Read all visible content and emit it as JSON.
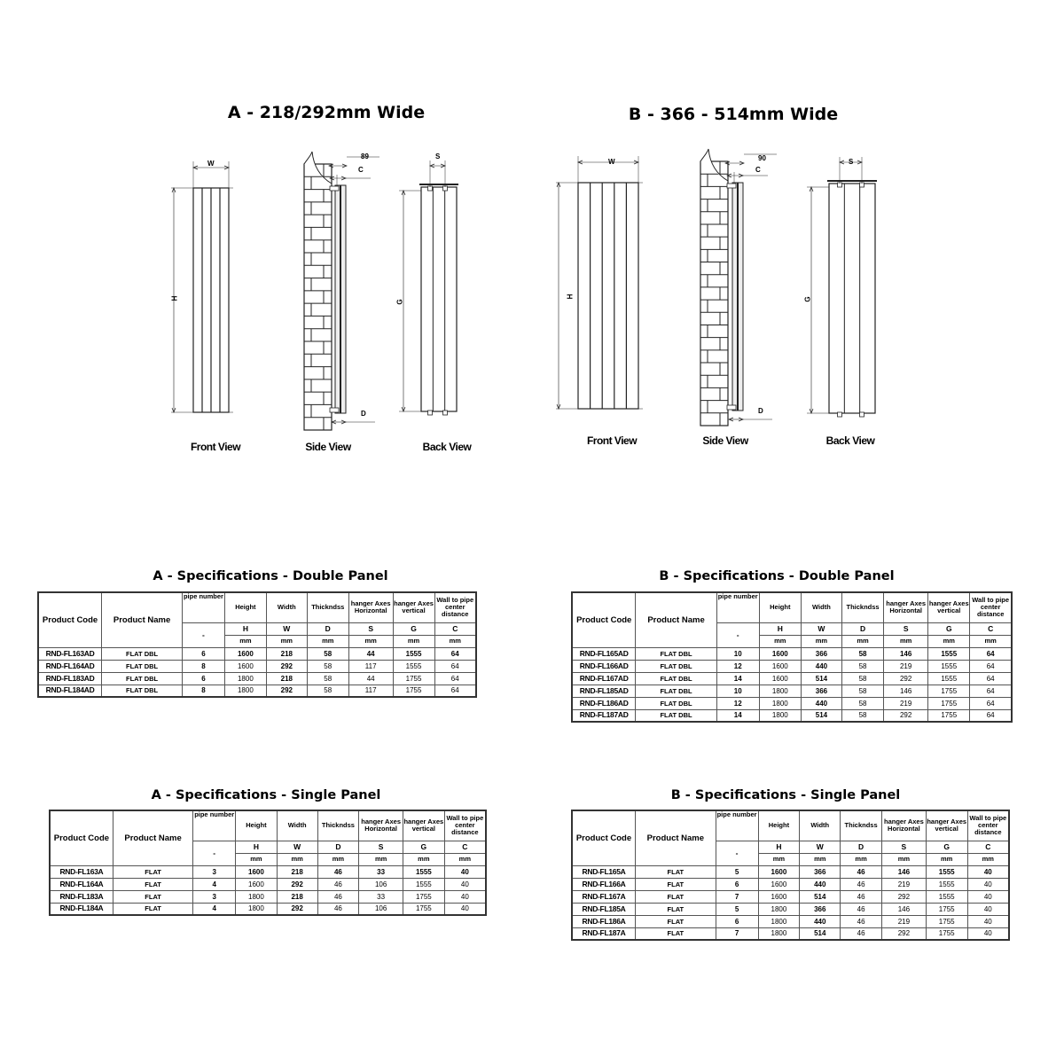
{
  "sections": {
    "A": {
      "title": "A - 218/292mm Wide",
      "views": {
        "front": "Front View",
        "side": "Side View",
        "back": "Back View"
      },
      "dims": {
        "W": "W",
        "H": "H",
        "wall_distance": "89",
        "C": "C",
        "D": "D",
        "S": "S",
        "G": "G"
      }
    },
    "B": {
      "title": "B - 366 - 514mm Wide",
      "views": {
        "front": "Front View",
        "side": "Side View",
        "back": "Back View"
      },
      "dims": {
        "W": "W",
        "H": "H",
        "wall_distance": "90",
        "C": "C",
        "D": "D",
        "S": "S",
        "G": "G"
      }
    }
  },
  "table_header": {
    "columns": [
      "Product Code",
      "Product Name",
      "pipe number",
      "Height",
      "Width",
      "Thickndss",
      "hanger Axes Horizontal",
      "hanger Axes vertical",
      "Wall to pipe center distance"
    ],
    "symbols": [
      "-",
      "H",
      "W",
      "D",
      "S",
      "G",
      "C"
    ],
    "units": [
      "mm",
      "mm",
      "mm",
      "mm",
      "mm",
      "mm"
    ]
  },
  "tables": {
    "a_double": {
      "title": "A - Specifications - Double Panel",
      "rows": [
        [
          "RND-FL163AD",
          "FLAT DBL",
          "6",
          "1600",
          "218",
          "58",
          "44",
          "1555",
          "64"
        ],
        [
          "RND-FL164AD",
          "FLAT DBL",
          "8",
          "1600",
          "292",
          "58",
          "117",
          "1555",
          "64"
        ],
        [
          "RND-FL183AD",
          "FLAT DBL",
          "6",
          "1800",
          "218",
          "58",
          "44",
          "1755",
          "64"
        ],
        [
          "RND-FL184AD",
          "FLAT DBL",
          "8",
          "1800",
          "292",
          "58",
          "117",
          "1755",
          "64"
        ]
      ]
    },
    "b_double": {
      "title": "B - Specifications - Double Panel",
      "rows": [
        [
          "RND-FL165AD",
          "FLAT DBL",
          "10",
          "1600",
          "366",
          "58",
          "146",
          "1555",
          "64"
        ],
        [
          "RND-FL166AD",
          "FLAT DBL",
          "12",
          "1600",
          "440",
          "58",
          "219",
          "1555",
          "64"
        ],
        [
          "RND-FL167AD",
          "FLAT DBL",
          "14",
          "1600",
          "514",
          "58",
          "292",
          "1555",
          "64"
        ],
        [
          "RND-FL185AD",
          "FLAT DBL",
          "10",
          "1800",
          "366",
          "58",
          "146",
          "1755",
          "64"
        ],
        [
          "RND-FL186AD",
          "FLAT DBL",
          "12",
          "1800",
          "440",
          "58",
          "219",
          "1755",
          "64"
        ],
        [
          "RND-FL187AD",
          "FLAT DBL",
          "14",
          "1800",
          "514",
          "58",
          "292",
          "1755",
          "64"
        ]
      ]
    },
    "a_single": {
      "title": "A - Specifications - Single Panel",
      "rows": [
        [
          "RND-FL163A",
          "FLAT",
          "3",
          "1600",
          "218",
          "46",
          "33",
          "1555",
          "40"
        ],
        [
          "RND-FL164A",
          "FLAT",
          "4",
          "1600",
          "292",
          "46",
          "106",
          "1555",
          "40"
        ],
        [
          "RND-FL183A",
          "FLAT",
          "3",
          "1800",
          "218",
          "46",
          "33",
          "1755",
          "40"
        ],
        [
          "RND-FL184A",
          "FLAT",
          "4",
          "1800",
          "292",
          "46",
          "106",
          "1755",
          "40"
        ]
      ]
    },
    "b_single": {
      "title": "B - Specifications - Single Panel",
      "rows": [
        [
          "RND-FL165A",
          "FLAT",
          "5",
          "1600",
          "366",
          "46",
          "146",
          "1555",
          "40"
        ],
        [
          "RND-FL166A",
          "FLAT",
          "6",
          "1600",
          "440",
          "46",
          "219",
          "1555",
          "40"
        ],
        [
          "RND-FL167A",
          "FLAT",
          "7",
          "1600",
          "514",
          "46",
          "292",
          "1555",
          "40"
        ],
        [
          "RND-FL185A",
          "FLAT",
          "5",
          "1800",
          "366",
          "46",
          "146",
          "1755",
          "40"
        ],
        [
          "RND-FL186A",
          "FLAT",
          "6",
          "1800",
          "440",
          "46",
          "219",
          "1755",
          "40"
        ],
        [
          "RND-FL187A",
          "FLAT",
          "7",
          "1800",
          "514",
          "46",
          "292",
          "1755",
          "40"
        ]
      ]
    }
  }
}
